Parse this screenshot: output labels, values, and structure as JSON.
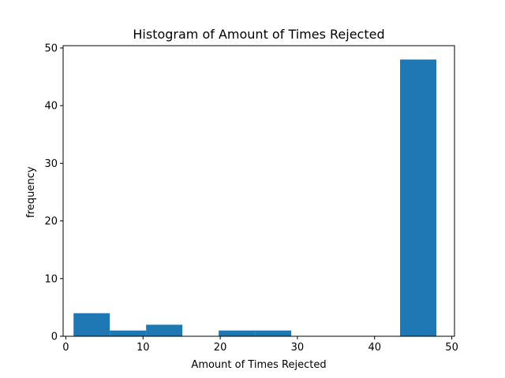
{
  "chart_data": {
    "type": "bar",
    "title": "Histogram of Amount of Times Rejected",
    "xlabel": "Amount of Times Rejected",
    "ylabel": "frequency",
    "xlim": [
      -0.35,
      50.35
    ],
    "ylim": [
      0,
      50.4
    ],
    "xticks": [
      0,
      10,
      20,
      30,
      40,
      50
    ],
    "yticks": [
      0,
      10,
      20,
      30,
      40,
      50
    ],
    "bins": [
      {
        "x0": 1.0,
        "x1": 5.7,
        "value": 4
      },
      {
        "x0": 5.7,
        "x1": 10.4,
        "value": 1
      },
      {
        "x0": 10.4,
        "x1": 15.1,
        "value": 2
      },
      {
        "x0": 15.1,
        "x1": 19.8,
        "value": 0
      },
      {
        "x0": 19.8,
        "x1": 24.5,
        "value": 1
      },
      {
        "x0": 24.5,
        "x1": 29.2,
        "value": 1
      },
      {
        "x0": 29.2,
        "x1": 33.9,
        "value": 0
      },
      {
        "x0": 33.9,
        "x1": 38.6,
        "value": 0
      },
      {
        "x0": 38.6,
        "x1": 43.3,
        "value": 0
      },
      {
        "x0": 43.3,
        "x1": 48.0,
        "value": 48
      }
    ],
    "bar_color": "#1f77b4",
    "grid": false,
    "legend": false
  }
}
